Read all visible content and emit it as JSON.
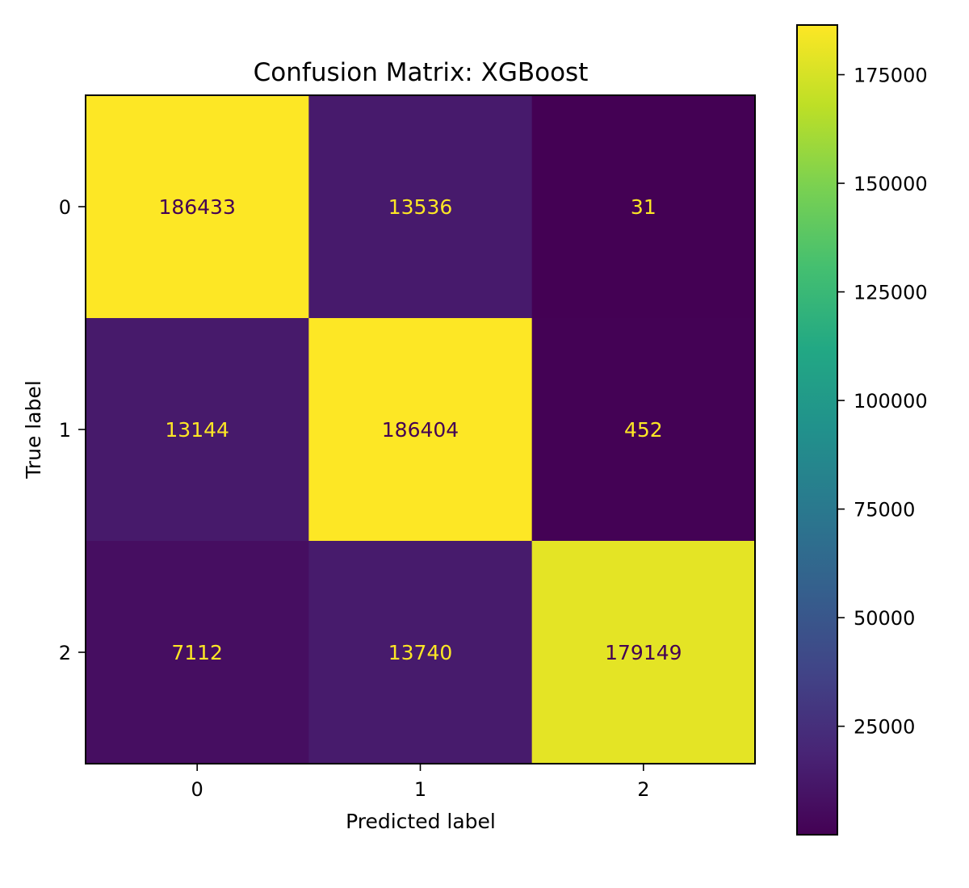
{
  "chart_data": {
    "type": "heatmap",
    "title": "Confusion Matrix: XGBoost",
    "xlabel": "Predicted label",
    "ylabel": "True label",
    "x_categories": [
      "0",
      "1",
      "2"
    ],
    "y_categories": [
      "0",
      "1",
      "2"
    ],
    "values": [
      [
        186433,
        13536,
        31
      ],
      [
        13144,
        186404,
        452
      ],
      [
        7112,
        13740,
        179149
      ]
    ],
    "colormap": "viridis",
    "value_text_colors": {
      "on_dark": "#fde725",
      "on_light": "#440154"
    },
    "colorbar": {
      "min": 31,
      "max": 186433,
      "ticks": [
        25000,
        50000,
        75000,
        100000,
        125000,
        150000,
        175000
      ],
      "tick_labels": [
        "25000",
        "50000",
        "75000",
        "100000",
        "125000",
        "150000",
        "175000"
      ]
    },
    "grid": false
  }
}
